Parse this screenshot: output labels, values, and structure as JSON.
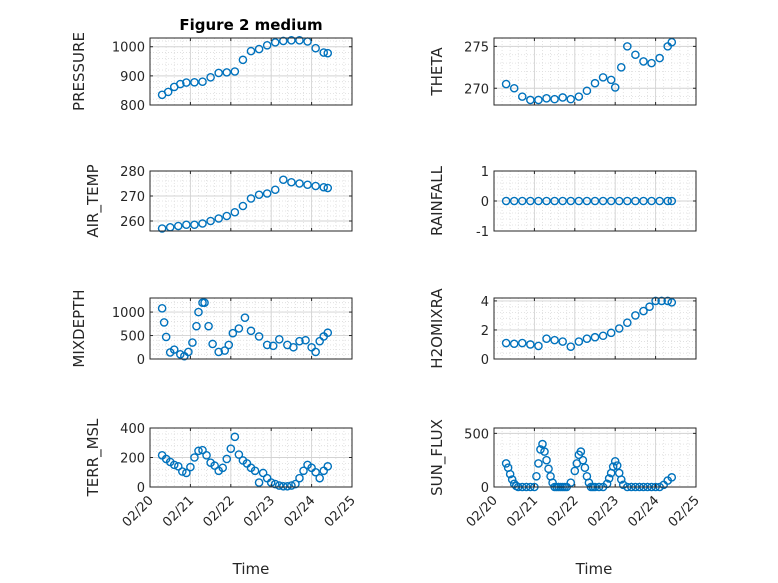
{
  "figure": {
    "title": "Figure 2 medium",
    "marker_color": "#0072BD",
    "xlabel": "Time",
    "xticklabels": [
      "02/20",
      "02/21",
      "02/22",
      "02/23",
      "02/24",
      "02/25"
    ]
  },
  "chart_data": [
    {
      "type": "scatter",
      "name": "pressure",
      "ylabel": "PRESSURE",
      "xlim": [
        0,
        5
      ],
      "ylim": [
        800,
        1030
      ],
      "yticks": [
        800,
        900,
        1000
      ],
      "yticklabels": [
        "800",
        "900",
        "1000"
      ],
      "grid": true,
      "minor_grid": true,
      "xticklabels_visible": false,
      "x": [
        0.3,
        0.45,
        0.6,
        0.75,
        0.9,
        1.1,
        1.3,
        1.5,
        1.7,
        1.9,
        2.1,
        2.3,
        2.5,
        2.7,
        2.9,
        3.1,
        3.3,
        3.5,
        3.7,
        3.9,
        4.1,
        4.3,
        4.4
      ],
      "y": [
        835,
        845,
        862,
        872,
        877,
        878,
        880,
        895,
        910,
        912,
        915,
        955,
        985,
        992,
        1005,
        1015,
        1020,
        1022,
        1022,
        1018,
        995,
        980,
        978
      ]
    },
    {
      "type": "scatter",
      "name": "theta",
      "ylabel": "THETA",
      "xlim": [
        0,
        5
      ],
      "ylim": [
        268,
        276
      ],
      "yticks": [
        270,
        275
      ],
      "yticklabels": [
        "270",
        "275"
      ],
      "grid": true,
      "minor_grid": true,
      "xticklabels_visible": false,
      "x": [
        0.3,
        0.5,
        0.7,
        0.9,
        1.1,
        1.3,
        1.5,
        1.7,
        1.9,
        2.1,
        2.3,
        2.5,
        2.7,
        2.9,
        3.0,
        3.15,
        3.3,
        3.5,
        3.7,
        3.9,
        4.1,
        4.3,
        4.4
      ],
      "y": [
        270.5,
        270,
        269,
        268.6,
        268.6,
        268.8,
        268.7,
        268.9,
        268.7,
        269,
        269.7,
        270.6,
        271.3,
        271.0,
        270.1,
        272.5,
        275.0,
        274.0,
        273.2,
        273.0,
        273.6,
        275.0,
        275.5
      ]
    },
    {
      "type": "scatter",
      "name": "air_temp",
      "ylabel": "AIR_TEMP",
      "xlim": [
        0,
        5
      ],
      "ylim": [
        256,
        280
      ],
      "yticks": [
        260,
        270,
        280
      ],
      "yticklabels": [
        "260",
        "270",
        "280"
      ],
      "grid": true,
      "minor_grid": true,
      "xticklabels_visible": false,
      "x": [
        0.3,
        0.5,
        0.7,
        0.9,
        1.1,
        1.3,
        1.5,
        1.7,
        1.9,
        2.1,
        2.3,
        2.5,
        2.7,
        2.9,
        3.1,
        3.3,
        3.5,
        3.7,
        3.9,
        4.1,
        4.3,
        4.4
      ],
      "y": [
        257,
        257.5,
        258,
        258.5,
        258.5,
        259,
        260,
        261,
        262,
        263.5,
        266,
        269,
        270.5,
        271,
        272.5,
        276.5,
        275.5,
        275,
        274.5,
        274,
        273.5,
        273.2
      ]
    },
    {
      "type": "scatter",
      "name": "rainfall",
      "ylabel": "RAINFALL",
      "xlim": [
        0,
        5
      ],
      "ylim": [
        -1,
        1
      ],
      "yticks": [
        -1,
        0,
        1
      ],
      "yticklabels": [
        "-1",
        "0",
        "1"
      ],
      "grid": true,
      "minor_grid": true,
      "xticklabels_visible": false,
      "x": [
        0.3,
        0.5,
        0.7,
        0.9,
        1.1,
        1.3,
        1.5,
        1.7,
        1.9,
        2.1,
        2.3,
        2.5,
        2.7,
        2.9,
        3.1,
        3.3,
        3.5,
        3.7,
        3.9,
        4.1,
        4.3,
        4.4
      ],
      "y": [
        0,
        0,
        0,
        0,
        0,
        0,
        0,
        0,
        0,
        0,
        0,
        0,
        0,
        0,
        0,
        0,
        0,
        0,
        0,
        0,
        0,
        0
      ]
    },
    {
      "type": "scatter",
      "name": "mixdepth",
      "ylabel": "MIXDEPTH",
      "xlim": [
        0,
        5
      ],
      "ylim": [
        0,
        1300
      ],
      "yticks": [
        0,
        500,
        1000
      ],
      "yticklabels": [
        "0",
        "500",
        "1000"
      ],
      "grid": true,
      "minor_grid": true,
      "xticklabels_visible": false,
      "x": [
        0.3,
        0.35,
        0.4,
        0.5,
        0.6,
        0.75,
        0.85,
        0.95,
        1.05,
        1.15,
        1.2,
        1.3,
        1.35,
        1.45,
        1.55,
        1.7,
        1.85,
        1.95,
        2.05,
        2.2,
        2.35,
        2.5,
        2.7,
        2.9,
        3.05,
        3.2,
        3.4,
        3.55,
        3.7,
        3.85,
        4.0,
        4.1,
        4.2,
        4.3,
        4.4
      ],
      "y": [
        1080,
        780,
        470,
        140,
        200,
        100,
        60,
        150,
        350,
        700,
        1000,
        1200,
        1200,
        700,
        320,
        150,
        180,
        300,
        550,
        650,
        880,
        600,
        480,
        300,
        280,
        420,
        300,
        250,
        380,
        400,
        250,
        150,
        380,
        480,
        560
      ]
    },
    {
      "type": "scatter",
      "name": "h2omixra",
      "ylabel": "H2OMIXRA",
      "xlim": [
        0,
        5
      ],
      "ylim": [
        0,
        4.2
      ],
      "yticks": [
        0,
        2,
        4
      ],
      "yticklabels": [
        "0",
        "2",
        "4"
      ],
      "grid": true,
      "minor_grid": true,
      "xticklabels_visible": false,
      "x": [
        0.3,
        0.5,
        0.7,
        0.9,
        1.1,
        1.3,
        1.5,
        1.7,
        1.9,
        2.1,
        2.3,
        2.5,
        2.7,
        2.9,
        3.1,
        3.3,
        3.5,
        3.7,
        3.85,
        4.0,
        4.15,
        4.3,
        4.4
      ],
      "y": [
        1.1,
        1.05,
        1.1,
        1.0,
        0.9,
        1.4,
        1.3,
        1.2,
        0.85,
        1.2,
        1.4,
        1.5,
        1.6,
        1.8,
        2.1,
        2.5,
        3.0,
        3.3,
        3.6,
        4.0,
        4.0,
        4.0,
        3.9
      ]
    },
    {
      "type": "scatter",
      "name": "terr_msl",
      "ylabel": "TERR_MSL",
      "xlim": [
        0,
        5
      ],
      "ylim": [
        0,
        400
      ],
      "yticks": [
        0,
        200,
        400
      ],
      "yticklabels": [
        "0",
        "200",
        "400"
      ],
      "grid": true,
      "minor_grid": true,
      "xticklabels_visible": true,
      "x": [
        0.3,
        0.4,
        0.5,
        0.6,
        0.7,
        0.8,
        0.9,
        1.0,
        1.1,
        1.2,
        1.3,
        1.4,
        1.5,
        1.6,
        1.7,
        1.8,
        1.9,
        2.0,
        2.1,
        2.2,
        2.3,
        2.4,
        2.5,
        2.6,
        2.7,
        2.8,
        2.9,
        3.0,
        3.1,
        3.2,
        3.3,
        3.4,
        3.5,
        3.6,
        3.7,
        3.8,
        3.9,
        4.0,
        4.1,
        4.2,
        4.3,
        4.4
      ],
      "y": [
        215,
        190,
        170,
        150,
        140,
        105,
        95,
        135,
        200,
        245,
        250,
        215,
        165,
        145,
        110,
        130,
        190,
        260,
        340,
        220,
        180,
        160,
        130,
        110,
        30,
        95,
        60,
        30,
        20,
        10,
        5,
        5,
        10,
        20,
        60,
        110,
        150,
        130,
        100,
        60,
        110,
        140
      ]
    },
    {
      "type": "scatter",
      "name": "sun_flux",
      "ylabel": "SUN_FLUX",
      "xlim": [
        0,
        5
      ],
      "ylim": [
        0,
        550
      ],
      "yticks": [
        0,
        500
      ],
      "yticklabels": [
        "0",
        "500"
      ],
      "grid": true,
      "minor_grid": true,
      "xticklabels_visible": true,
      "x": [
        0.3,
        0.35,
        0.4,
        0.45,
        0.5,
        0.55,
        0.6,
        0.7,
        0.8,
        0.9,
        1.0,
        1.05,
        1.1,
        1.15,
        1.2,
        1.25,
        1.3,
        1.35,
        1.4,
        1.45,
        1.5,
        1.55,
        1.6,
        1.65,
        1.7,
        1.75,
        1.8,
        1.9,
        2.0,
        2.05,
        2.1,
        2.15,
        2.2,
        2.25,
        2.3,
        2.35,
        2.4,
        2.45,
        2.5,
        2.6,
        2.7,
        2.8,
        2.85,
        2.9,
        2.95,
        3.0,
        3.05,
        3.1,
        3.15,
        3.2,
        3.3,
        3.4,
        3.5,
        3.6,
        3.7,
        3.8,
        3.9,
        4.0,
        4.1,
        4.2,
        4.3,
        4.4
      ],
      "y": [
        220,
        180,
        120,
        70,
        30,
        10,
        0,
        0,
        0,
        0,
        0,
        100,
        220,
        350,
        400,
        330,
        250,
        170,
        100,
        40,
        0,
        0,
        0,
        0,
        0,
        0,
        0,
        40,
        150,
        220,
        300,
        330,
        250,
        180,
        100,
        40,
        0,
        0,
        0,
        0,
        0,
        30,
        80,
        130,
        190,
        240,
        200,
        130,
        70,
        20,
        0,
        0,
        0,
        0,
        0,
        0,
        0,
        0,
        0,
        20,
        60,
        90
      ]
    }
  ]
}
